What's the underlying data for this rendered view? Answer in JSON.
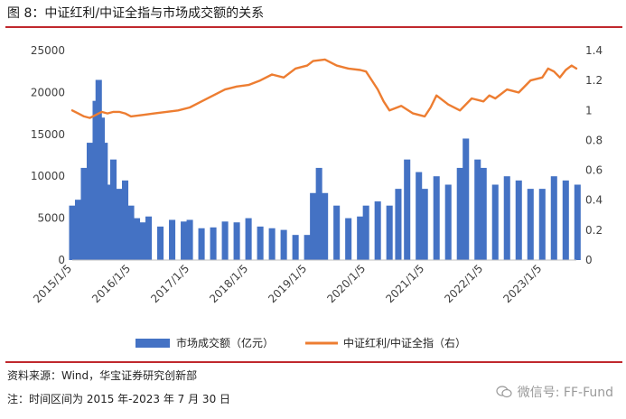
{
  "figure": {
    "title": "图 8：中证红利/中证全指与市场成交额的关系",
    "source": "资料来源：Wind，华宝证券研究创新部",
    "note": "注：时间区间为 2015 年-2023 年 7 月 30 日",
    "watermark": "微信号: FF-Fund",
    "colors": {
      "accent_rule": "#c0282d",
      "bar": "#4472c4",
      "line": "#ed7d31"
    }
  },
  "chart_data": {
    "type": "bar+line",
    "x_tick_labels": [
      "2015/1/5",
      "2016/1/5",
      "2017/1/5",
      "2018/1/5",
      "2019/1/5",
      "2020/1/5",
      "2021/1/5",
      "2022/1/5",
      "2023/1/5"
    ],
    "x_range": [
      "2015-01-05",
      "2023-07-30"
    ],
    "y_left": {
      "min": 0,
      "max": 25000,
      "ticks": [
        0,
        5000,
        10000,
        15000,
        20000,
        25000
      ]
    },
    "y_right": {
      "min": 0,
      "max": 1.4,
      "ticks": [
        "0",
        "0.2",
        "0.4",
        "0.6",
        "0.8",
        "1",
        "1.2",
        "1.4"
      ]
    },
    "grid": false,
    "legend_position": "bottom",
    "series": [
      {
        "name": "市场成交额（亿元）",
        "kind": "bar",
        "axis": "left",
        "x": [
          2015.0,
          2015.1,
          2015.2,
          2015.3,
          2015.4,
          2015.45,
          2015.5,
          2015.55,
          2015.6,
          2015.7,
          2015.8,
          2015.9,
          2016.0,
          2016.1,
          2016.2,
          2016.3,
          2016.5,
          2016.7,
          2016.9,
          2017.0,
          2017.2,
          2017.4,
          2017.6,
          2017.8,
          2018.0,
          2018.2,
          2018.4,
          2018.6,
          2018.8,
          2019.0,
          2019.1,
          2019.2,
          2019.3,
          2019.5,
          2019.7,
          2019.9,
          2020.0,
          2020.2,
          2020.4,
          2020.55,
          2020.7,
          2020.9,
          2021.0,
          2021.2,
          2021.4,
          2021.6,
          2021.7,
          2021.9,
          2022.0,
          2022.2,
          2022.4,
          2022.6,
          2022.8,
          2023.0,
          2023.2,
          2023.4,
          2023.6
        ],
        "values": [
          6500,
          7200,
          11000,
          14000,
          19000,
          21500,
          17000,
          14000,
          9000,
          12000,
          8500,
          9500,
          6500,
          5000,
          4500,
          5200,
          4000,
          4800,
          4600,
          4800,
          3800,
          3900,
          4600,
          4500,
          5000,
          4000,
          3800,
          3600,
          3000,
          3000,
          8000,
          11000,
          8000,
          6500,
          5000,
          5200,
          6500,
          7000,
          6500,
          8500,
          12000,
          10500,
          8500,
          10000,
          9000,
          11000,
          14500,
          12000,
          11000,
          9000,
          10000,
          9500,
          8500,
          8500,
          10000,
          9500,
          9000
        ]
      },
      {
        "name": "中证红利/中证全指（右）",
        "kind": "line",
        "axis": "right",
        "x": [
          2015.0,
          2015.1,
          2015.2,
          2015.3,
          2015.4,
          2015.5,
          2015.6,
          2015.7,
          2015.8,
          2015.9,
          2016.0,
          2016.2,
          2016.4,
          2016.6,
          2016.8,
          2017.0,
          2017.2,
          2017.4,
          2017.6,
          2017.8,
          2018.0,
          2018.2,
          2018.4,
          2018.6,
          2018.8,
          2019.0,
          2019.1,
          2019.3,
          2019.5,
          2019.7,
          2019.9,
          2020.0,
          2020.1,
          2020.2,
          2020.3,
          2020.4,
          2020.6,
          2020.8,
          2021.0,
          2021.1,
          2021.2,
          2021.4,
          2021.6,
          2021.8,
          2022.0,
          2022.1,
          2022.2,
          2022.4,
          2022.6,
          2022.8,
          2023.0,
          2023.1,
          2023.2,
          2023.3,
          2023.4,
          2023.5,
          2023.58
        ],
        "values": [
          1.0,
          0.98,
          0.96,
          0.95,
          0.97,
          0.99,
          0.98,
          0.99,
          0.99,
          0.98,
          0.96,
          0.97,
          0.98,
          0.99,
          1.0,
          1.02,
          1.06,
          1.1,
          1.14,
          1.16,
          1.17,
          1.2,
          1.24,
          1.22,
          1.28,
          1.3,
          1.33,
          1.34,
          1.3,
          1.28,
          1.27,
          1.26,
          1.2,
          1.14,
          1.06,
          1.0,
          1.03,
          0.98,
          0.96,
          1.02,
          1.1,
          1.04,
          1.0,
          1.08,
          1.06,
          1.1,
          1.08,
          1.14,
          1.12,
          1.2,
          1.22,
          1.28,
          1.26,
          1.22,
          1.27,
          1.3,
          1.28
        ]
      }
    ]
  }
}
